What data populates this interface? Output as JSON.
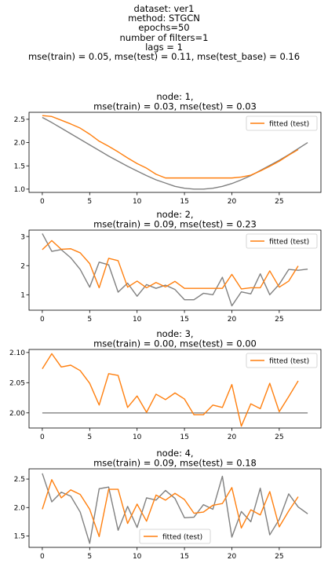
{
  "figure": {
    "suptitle_lines": [
      "dataset: ver1",
      "method: STGCN",
      "epochs=50",
      "number of filters=1",
      "lags = 1",
      "mse(train) = 0.05, mse(test) = 0.11, mse(test_base) = 0.16"
    ],
    "colors": {
      "observed": "#808080",
      "fitted": "#ff7f0e"
    }
  },
  "chart_data": [
    {
      "type": "line",
      "title_lines": [
        "node: 1,",
        "mse(train) = 0.03, mse(test) = 0.03"
      ],
      "xlim": [
        -1.4,
        29.4
      ],
      "ylim": [
        0.93,
        2.65
      ],
      "xticks": [
        0,
        5,
        10,
        15,
        20,
        25
      ],
      "yticks": [
        1.0,
        1.5,
        2.0,
        2.5
      ],
      "ytick_labels": [
        "1.0",
        "1.5",
        "2.0",
        "2.5"
      ],
      "legend": {
        "placement": "upper-right",
        "entries": [
          "fitted (test)"
        ]
      },
      "series": [
        {
          "role": "observed",
          "x_start": 0,
          "values": [
            2.54,
            2.43,
            2.31,
            2.19,
            2.07,
            1.95,
            1.83,
            1.71,
            1.6,
            1.49,
            1.39,
            1.29,
            1.2,
            1.13,
            1.06,
            1.02,
            1.0,
            1.0,
            1.02,
            1.06,
            1.12,
            1.2,
            1.29,
            1.4,
            1.51,
            1.62,
            1.74,
            1.87,
            2.0
          ]
        },
        {
          "role": "fitted",
          "name": "fitted (test)",
          "x_start": 0,
          "values": [
            2.58,
            2.56,
            2.48,
            2.4,
            2.31,
            2.18,
            2.03,
            1.92,
            1.8,
            1.67,
            1.55,
            1.45,
            1.32,
            1.24,
            1.24,
            1.24,
            1.24,
            1.24,
            1.24,
            1.24,
            1.24,
            1.26,
            1.3,
            1.39,
            1.49,
            1.6,
            1.73,
            1.85
          ]
        }
      ]
    },
    {
      "type": "line",
      "title_lines": [
        "node: 2,",
        "mse(train) = 0.09, mse(test) = 0.23"
      ],
      "xlim": [
        -1.4,
        29.4
      ],
      "ylim": [
        0.47,
        3.22
      ],
      "xticks": [
        0,
        5,
        10,
        15,
        20,
        25
      ],
      "yticks": [
        1,
        2,
        3
      ],
      "ytick_labels": [
        "1",
        "2",
        "3"
      ],
      "legend": {
        "placement": "upper-right",
        "entries": [
          "fitted (test)"
        ]
      },
      "series": [
        {
          "role": "observed",
          "x_start": 0,
          "values": [
            3.1,
            2.49,
            2.55,
            2.27,
            1.87,
            1.26,
            2.12,
            2.03,
            1.09,
            1.4,
            0.95,
            1.35,
            1.22,
            1.33,
            1.18,
            0.83,
            0.83,
            1.05,
            1.0,
            1.6,
            0.62,
            1.1,
            1.03,
            1.72,
            1.0,
            1.36,
            1.87,
            1.84,
            1.88
          ]
        },
        {
          "role": "fitted",
          "name": "fitted (test)",
          "x_start": 0,
          "values": [
            2.55,
            2.86,
            2.56,
            2.58,
            2.44,
            2.07,
            1.24,
            2.25,
            2.17,
            1.26,
            1.47,
            1.24,
            1.42,
            1.27,
            1.46,
            1.22,
            1.22,
            1.22,
            1.22,
            1.22,
            1.7,
            1.2,
            1.24,
            1.24,
            1.82,
            1.26,
            1.47,
            1.99
          ]
        }
      ]
    },
    {
      "type": "line",
      "title_lines": [
        "node: 3,",
        "mse(train) = 0.00, mse(test) = 0.00"
      ],
      "xlim": [
        -1.4,
        29.4
      ],
      "ylim": [
        1.975,
        2.105
      ],
      "xticks": [
        0,
        5,
        10,
        15,
        20,
        25
      ],
      "yticks": [
        2.0,
        2.05,
        2.1
      ],
      "ytick_labels": [
        "2.00",
        "2.05",
        "2.10"
      ],
      "legend": {
        "placement": "upper-right",
        "entries": [
          "fitted (test)"
        ]
      },
      "series": [
        {
          "role": "observed",
          "x_start": 0,
          "values": [
            2.0,
            2.0,
            2.0,
            2.0,
            2.0,
            2.0,
            2.0,
            2.0,
            2.0,
            2.0,
            2.0,
            2.0,
            2.0,
            2.0,
            2.0,
            2.0,
            2.0,
            2.0,
            2.0,
            2.0,
            2.0,
            2.0,
            2.0,
            2.0,
            2.0,
            2.0,
            2.0,
            2.0,
            2.0
          ]
        },
        {
          "role": "fitted",
          "name": "fitted (test)",
          "x_start": 0,
          "values": [
            2.073,
            2.098,
            2.076,
            2.079,
            2.07,
            2.049,
            2.013,
            2.065,
            2.062,
            2.009,
            2.028,
            2.001,
            2.031,
            2.022,
            2.033,
            2.023,
            1.997,
            1.997,
            2.013,
            2.009,
            2.047,
            1.978,
            2.015,
            2.007,
            2.049,
            2.002,
            2.027,
            2.053
          ]
        }
      ]
    },
    {
      "type": "line",
      "title_lines": [
        "node: 4,",
        "mse(train) = 0.09, mse(test) = 0.18"
      ],
      "xlim": [
        -1.4,
        29.4
      ],
      "ylim": [
        1.3,
        2.68
      ],
      "xticks": [
        0,
        5,
        10,
        15,
        20,
        25
      ],
      "yticks": [
        1.5,
        2.0,
        2.5
      ],
      "ytick_labels": [
        "1.5",
        "2.0",
        "2.5"
      ],
      "legend": {
        "placement": "lower-center",
        "entries": [
          "fitted (test)"
        ]
      },
      "series": [
        {
          "role": "observed",
          "x_start": 0,
          "values": [
            2.6,
            2.1,
            2.27,
            2.2,
            1.92,
            1.37,
            2.33,
            2.36,
            1.6,
            2.02,
            1.65,
            2.17,
            2.13,
            2.3,
            2.16,
            1.82,
            1.83,
            2.05,
            1.97,
            2.55,
            1.48,
            1.93,
            1.75,
            2.34,
            1.52,
            1.79,
            2.24,
            2.01,
            1.89
          ]
        },
        {
          "role": "fitted",
          "name": "fitted (test)",
          "x_start": 0,
          "values": [
            1.97,
            2.49,
            2.17,
            2.31,
            2.23,
            1.97,
            1.49,
            2.32,
            2.32,
            1.72,
            2.06,
            1.76,
            2.22,
            2.13,
            2.25,
            2.14,
            1.9,
            1.92,
            2.04,
            2.07,
            2.35,
            1.64,
            1.96,
            1.87,
            2.28,
            1.66,
            1.94,
            2.19
          ]
        }
      ]
    }
  ]
}
